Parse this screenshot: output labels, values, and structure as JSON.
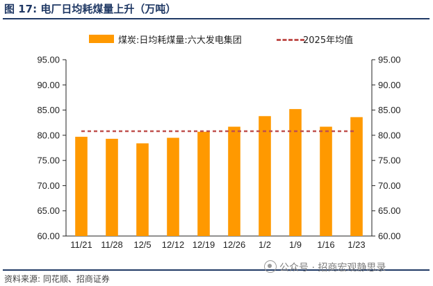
{
  "figure": {
    "title": "图 17:  电厂日均耗煤量上升（万吨）",
    "source": "资料来源:  同花顺、招商证券",
    "watermark": "公众号 · 招商宏观静思录"
  },
  "chart_data": {
    "type": "bar",
    "categories": [
      "11/21",
      "11/28",
      "12/5",
      "12/12",
      "12/19",
      "12/26",
      "1/2",
      "1/9",
      "1/16",
      "1/23"
    ],
    "series": [
      {
        "name": "煤炭:日均耗煤量:六大发电集团",
        "type": "bar",
        "color": "#FF9900",
        "values": [
          79.7,
          79.3,
          78.4,
          79.5,
          80.7,
          81.7,
          83.8,
          85.2,
          81.7,
          83.6
        ]
      },
      {
        "name": "2025年均值",
        "type": "line",
        "style": "dashed",
        "color": "#C0504D",
        "values": [
          80.8,
          80.8,
          80.8,
          80.8,
          80.8,
          80.8,
          80.8,
          80.8,
          80.8,
          80.8
        ]
      }
    ],
    "ylim": [
      60,
      95
    ],
    "yticks": [
      "60.00",
      "65.00",
      "70.00",
      "75.00",
      "80.00",
      "85.00",
      "90.00",
      "95.00"
    ],
    "y2lim": [
      60,
      95
    ],
    "y2ticks": [
      "60.00",
      "65.00",
      "70.00",
      "75.00",
      "80.00",
      "85.00",
      "90.00",
      "95.00"
    ],
    "xlabel": "",
    "ylabel": "",
    "grid": false,
    "legend_position": "top"
  }
}
